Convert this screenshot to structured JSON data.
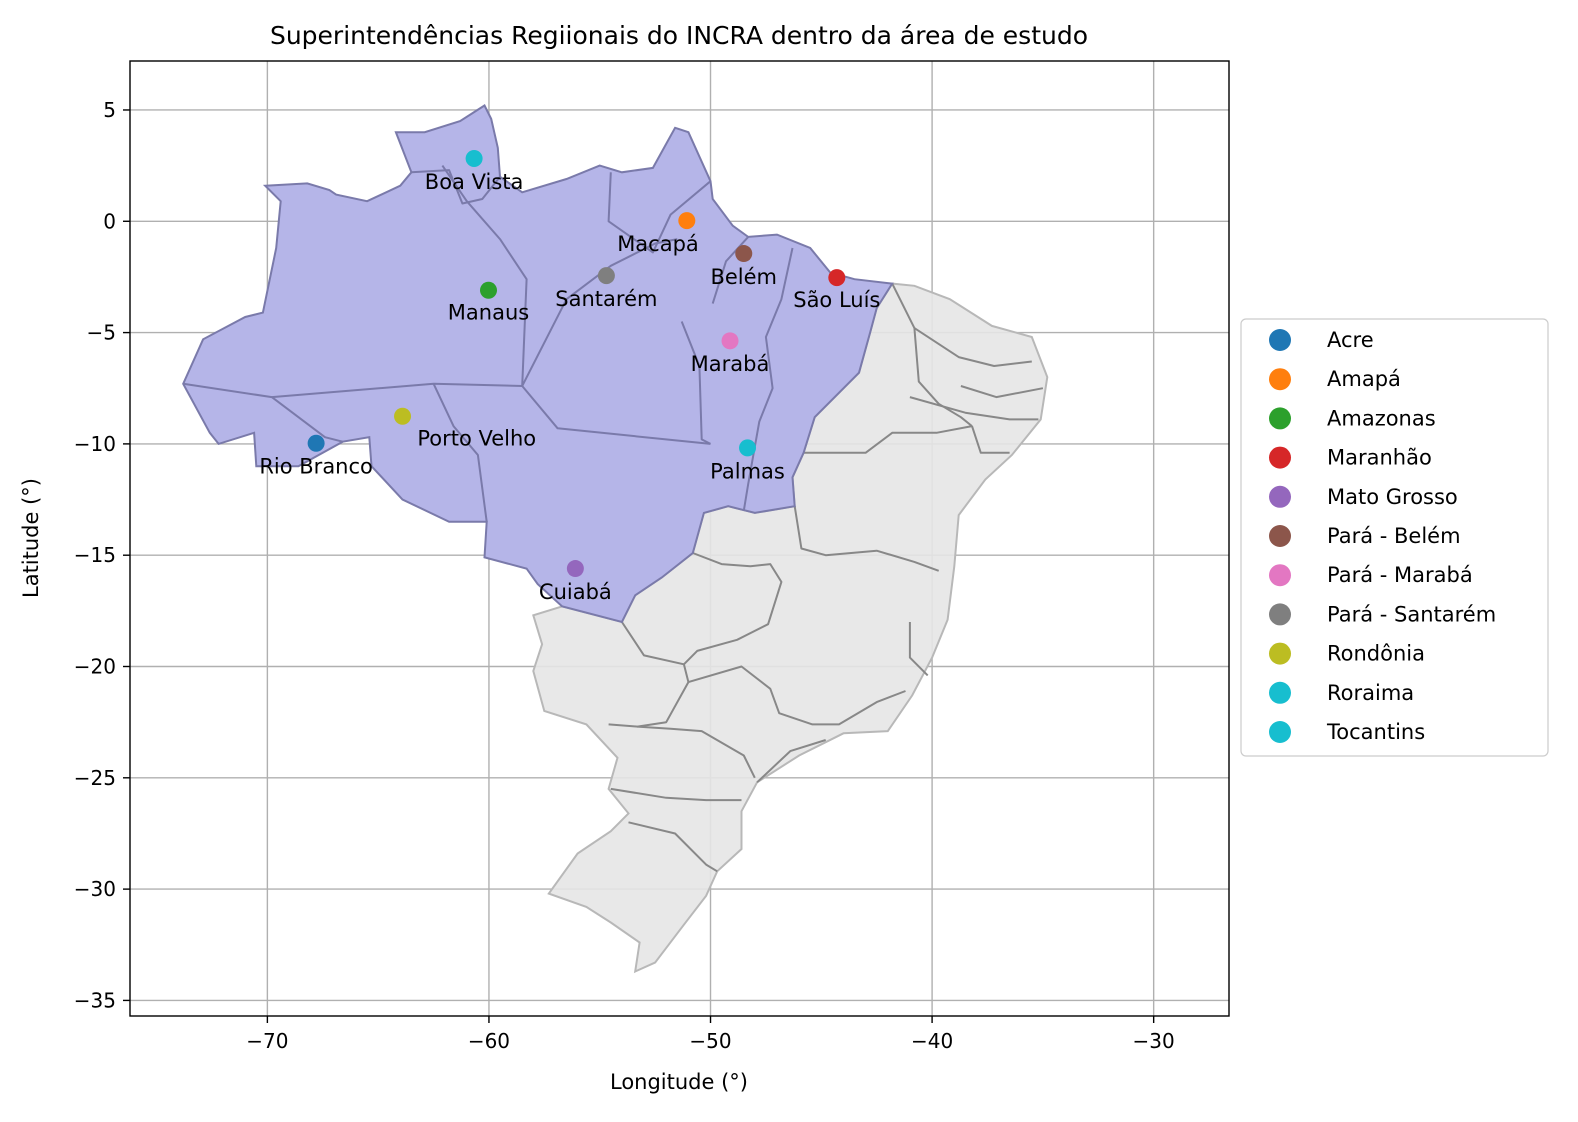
{
  "title": "Superintendências Regiionais do INCRA dentro da área de estudo",
  "xlabel": "Longitude (°)",
  "ylabel": "Latitude (°)",
  "xlim": [
    -76.2,
    -26.6
  ],
  "ylim": [
    -35.7,
    7.2
  ],
  "x_ticks": [
    {
      "value": -70,
      "label": "−70"
    },
    {
      "value": -60,
      "label": "−60"
    },
    {
      "value": -50,
      "label": "−50"
    },
    {
      "value": -40,
      "label": "−40"
    },
    {
      "value": -30,
      "label": "−30"
    }
  ],
  "y_ticks": [
    {
      "value": 5,
      "label": "5"
    },
    {
      "value": 0,
      "label": "0"
    },
    {
      "value": -5,
      "label": "−5"
    },
    {
      "value": -10,
      "label": "−10"
    },
    {
      "value": -15,
      "label": "−15"
    },
    {
      "value": -20,
      "label": "−20"
    },
    {
      "value": -25,
      "label": "−25"
    },
    {
      "value": -30,
      "label": "−30"
    },
    {
      "value": -35,
      "label": "−35"
    }
  ],
  "colors": {
    "study_area_fill": "#b5b5e8",
    "study_area_edge": "#7a7aaa",
    "rest_fill": "#e5e5e5",
    "rest_edge": "#b8b8b8",
    "grid": "#b0b0b0"
  },
  "cities": [
    {
      "name": "Acre",
      "label": "Rio Branco",
      "lon": -67.8,
      "lat": -9.97,
      "color": "#1f77b4",
      "label_dx": 0,
      "label_dy": 1.05
    },
    {
      "name": "Amapá",
      "label": "Macapá",
      "lon": -51.07,
      "lat": 0.03,
      "color": "#ff7f0e",
      "label_dx": -1.3,
      "label_dy": 1.05
    },
    {
      "name": "Amazonas",
      "label": "Manaus",
      "lon": -60.02,
      "lat": -3.1,
      "color": "#2ca02c",
      "label_dx": 0,
      "label_dy": 1.0
    },
    {
      "name": "Maranhão",
      "label": "São Luís",
      "lon": -44.3,
      "lat": -2.53,
      "color": "#d62728",
      "label_dx": 0,
      "label_dy": 1.0
    },
    {
      "name": "Mato Grosso",
      "label": "Cuiabá",
      "lon": -56.1,
      "lat": -15.6,
      "color": "#9467bd",
      "label_dx": 0,
      "label_dy": 1.05
    },
    {
      "name": "Pará - Belém",
      "label": "Belém",
      "lon": -48.5,
      "lat": -1.45,
      "color": "#8c564b",
      "label_dx": 0,
      "label_dy": 1.05
    },
    {
      "name": "Pará - Marabá",
      "label": "Marabá",
      "lon": -49.12,
      "lat": -5.37,
      "color": "#e377c2",
      "label_dx": 0,
      "label_dy": 1.05
    },
    {
      "name": "Pará - Santarém",
      "label": "Santarém",
      "lon": -54.7,
      "lat": -2.44,
      "color": "#7f7f7f",
      "label_dx": 0,
      "label_dy": 1.05
    },
    {
      "name": "Rondônia",
      "label": "Porto Velho",
      "lon": -63.9,
      "lat": -8.76,
      "color": "#bcbd22",
      "label_dx": 3.35,
      "label_dy": 1.0
    },
    {
      "name": "Roraima",
      "label": "Boa Vista",
      "lon": -60.67,
      "lat": 2.82,
      "color": "#17becf",
      "label_dx": 0,
      "label_dy": 1.05
    },
    {
      "name": "Tocantins",
      "label": "Palmas",
      "lon": -48.33,
      "lat": -10.18,
      "color": "#17becf",
      "label_dx": 0,
      "label_dy": 1.05
    }
  ],
  "legend": {
    "position": "right-center",
    "entries": [
      {
        "label": "Acre",
        "color": "#1f77b4"
      },
      {
        "label": "Amapá",
        "color": "#ff7f0e"
      },
      {
        "label": "Amazonas",
        "color": "#2ca02c"
      },
      {
        "label": "Maranhão",
        "color": "#d62728"
      },
      {
        "label": "Mato Grosso",
        "color": "#9467bd"
      },
      {
        "label": "Pará - Belém",
        "color": "#8c564b"
      },
      {
        "label": "Pará - Marabá",
        "color": "#e377c2"
      },
      {
        "label": "Pará - Santarém",
        "color": "#7f7f7f"
      },
      {
        "label": "Rondônia",
        "color": "#bcbd22"
      },
      {
        "label": "Roraima",
        "color": "#17becf"
      },
      {
        "label": "Tocantins",
        "color": "#17becf"
      }
    ]
  },
  "regions": {
    "study_area": [
      [
        -73.8,
        -7.3
      ],
      [
        -72.9,
        -5.3
      ],
      [
        -71.0,
        -4.3
      ],
      [
        -70.2,
        -4.1
      ],
      [
        -69.6,
        -1.2
      ],
      [
        -69.4,
        0.9
      ],
      [
        -70.1,
        1.6
      ],
      [
        -68.2,
        1.7
      ],
      [
        -67.2,
        1.4
      ],
      [
        -66.9,
        1.2
      ],
      [
        -65.5,
        0.9
      ],
      [
        -64.0,
        1.6
      ],
      [
        -63.5,
        2.2
      ],
      [
        -64.2,
        4.0
      ],
      [
        -62.9,
        4.0
      ],
      [
        -61.3,
        4.5
      ],
      [
        -60.2,
        5.2
      ],
      [
        -59.9,
        4.6
      ],
      [
        -59.6,
        3.3
      ],
      [
        -59.5,
        2.0
      ],
      [
        -58.5,
        1.3
      ],
      [
        -56.5,
        1.9
      ],
      [
        -55.0,
        2.5
      ],
      [
        -54.0,
        2.2
      ],
      [
        -52.6,
        2.4
      ],
      [
        -51.6,
        4.2
      ],
      [
        -51.0,
        4.0
      ],
      [
        -50.0,
        1.8
      ],
      [
        -49.9,
        1.0
      ],
      [
        -49.0,
        -0.2
      ],
      [
        -48.3,
        -0.7
      ],
      [
        -47.0,
        -0.6
      ],
      [
        -45.5,
        -1.2
      ],
      [
        -44.6,
        -2.3
      ],
      [
        -43.5,
        -2.6
      ],
      [
        -41.8,
        -2.8
      ],
      [
        -42.5,
        -3.9
      ],
      [
        -42.8,
        -5.0
      ],
      [
        -43.3,
        -6.8
      ],
      [
        -45.3,
        -8.8
      ],
      [
        -45.8,
        -10.4
      ],
      [
        -46.3,
        -11.5
      ],
      [
        -46.2,
        -12.8
      ],
      [
        -48.0,
        -13.1
      ],
      [
        -49.2,
        -12.8
      ],
      [
        -50.3,
        -13.1
      ],
      [
        -50.8,
        -14.9
      ],
      [
        -52.2,
        -16.0
      ],
      [
        -53.4,
        -16.8
      ],
      [
        -54.0,
        -18.0
      ],
      [
        -56.7,
        -17.3
      ],
      [
        -57.8,
        -16.3
      ],
      [
        -58.3,
        -15.6
      ],
      [
        -60.2,
        -15.1
      ],
      [
        -60.1,
        -13.5
      ],
      [
        -61.8,
        -13.5
      ],
      [
        -63.9,
        -12.5
      ],
      [
        -65.3,
        -11.0
      ],
      [
        -65.4,
        -9.7
      ],
      [
        -66.6,
        -9.9
      ],
      [
        -68.6,
        -11.0
      ],
      [
        -70.5,
        -11.0
      ],
      [
        -70.6,
        -9.5
      ],
      [
        -72.2,
        -10.0
      ],
      [
        -72.6,
        -9.5
      ],
      [
        -73.8,
        -7.3
      ]
    ],
    "rest_area": [
      [
        -48.0,
        -13.1
      ],
      [
        -46.2,
        -12.8
      ],
      [
        -46.3,
        -11.5
      ],
      [
        -45.8,
        -10.4
      ],
      [
        -45.3,
        -8.8
      ],
      [
        -43.3,
        -6.8
      ],
      [
        -42.8,
        -5.0
      ],
      [
        -42.5,
        -3.9
      ],
      [
        -41.8,
        -2.8
      ],
      [
        -40.8,
        -2.9
      ],
      [
        -39.2,
        -3.5
      ],
      [
        -37.3,
        -4.7
      ],
      [
        -35.5,
        -5.2
      ],
      [
        -34.8,
        -7.0
      ],
      [
        -35.1,
        -8.9
      ],
      [
        -36.4,
        -10.5
      ],
      [
        -37.6,
        -11.6
      ],
      [
        -38.8,
        -13.2
      ],
      [
        -39.0,
        -15.5
      ],
      [
        -39.3,
        -17.9
      ],
      [
        -40.0,
        -19.6
      ],
      [
        -40.9,
        -21.3
      ],
      [
        -42.0,
        -22.9
      ],
      [
        -44.0,
        -23.0
      ],
      [
        -46.0,
        -24.0
      ],
      [
        -47.9,
        -25.2
      ],
      [
        -48.6,
        -26.5
      ],
      [
        -48.6,
        -28.2
      ],
      [
        -49.7,
        -29.2
      ],
      [
        -50.2,
        -30.3
      ],
      [
        -51.2,
        -31.6
      ],
      [
        -52.5,
        -33.3
      ],
      [
        -53.4,
        -33.7
      ],
      [
        -53.2,
        -32.4
      ],
      [
        -54.5,
        -31.5
      ],
      [
        -55.6,
        -30.8
      ],
      [
        -57.3,
        -30.2
      ],
      [
        -56.0,
        -28.4
      ],
      [
        -54.5,
        -27.4
      ],
      [
        -53.7,
        -26.6
      ],
      [
        -54.6,
        -25.5
      ],
      [
        -54.2,
        -24.1
      ],
      [
        -55.6,
        -22.6
      ],
      [
        -57.5,
        -22.0
      ],
      [
        -58.0,
        -20.2
      ],
      [
        -57.6,
        -19.0
      ],
      [
        -58.0,
        -17.7
      ],
      [
        -56.7,
        -17.3
      ],
      [
        -54.0,
        -18.0
      ],
      [
        -53.4,
        -16.8
      ],
      [
        -52.2,
        -16.0
      ],
      [
        -50.8,
        -14.9
      ],
      [
        -50.3,
        -13.1
      ],
      [
        -49.2,
        -12.8
      ],
      [
        -48.0,
        -13.1
      ]
    ],
    "study_borders": [
      [
        [
          -73.8,
          -7.3
        ],
        [
          -69.8,
          -7.9
        ],
        [
          -67.4,
          -9.7
        ],
        [
          -66.6,
          -9.9
        ]
      ],
      [
        [
          -69.8,
          -7.9
        ],
        [
          -62.5,
          -7.3
        ],
        [
          -58.5,
          -7.4
        ],
        [
          -56.9,
          -9.3
        ],
        [
          -50.0,
          -10.0
        ]
      ],
      [
        [
          -62.5,
          -7.3
        ],
        [
          -61.6,
          -9.2
        ],
        [
          -60.5,
          -10.5
        ],
        [
          -60.1,
          -13.5
        ]
      ],
      [
        [
          -58.5,
          -7.4
        ],
        [
          -58.3,
          -2.6
        ],
        [
          -59.5,
          -0.8
        ],
        [
          -61.0,
          0.9
        ],
        [
          -62.1,
          2.5
        ]
      ],
      [
        [
          -63.5,
          2.2
        ],
        [
          -61.8,
          2.3
        ],
        [
          -61.2,
          0.8
        ],
        [
          -60.3,
          1.0
        ],
        [
          -59.5,
          2.0
        ]
      ],
      [
        [
          -58.5,
          -7.4
        ],
        [
          -56.5,
          -3.5
        ],
        [
          -54.5,
          -2.0
        ],
        [
          -52.5,
          -1.0
        ],
        [
          -51.5,
          -0.8
        ]
      ],
      [
        [
          -51.3,
          -4.5
        ],
        [
          -50.5,
          -6.5
        ],
        [
          -50.4,
          -9.8
        ],
        [
          -50.0,
          -10.0
        ]
      ],
      [
        [
          -48.5,
          -13.0
        ],
        [
          -48.3,
          -11.8
        ],
        [
          -47.8,
          -9.0
        ],
        [
          -47.2,
          -7.5
        ],
        [
          -47.5,
          -5.2
        ],
        [
          -46.8,
          -3.5
        ],
        [
          -46.3,
          -1.2
        ]
      ],
      [
        [
          -54.5,
          2.2
        ],
        [
          -54.6,
          0.0
        ],
        [
          -52.6,
          -1.4
        ],
        [
          -51.8,
          0.3
        ],
        [
          -50.0,
          1.8
        ]
      ],
      [
        [
          -48.3,
          -0.7
        ],
        [
          -49.3,
          -1.8
        ],
        [
          -49.9,
          -3.7
        ]
      ]
    ],
    "rest_borders": [
      [
        [
          -41.8,
          -2.8
        ],
        [
          -40.8,
          -4.8
        ],
        [
          -40.6,
          -7.2
        ],
        [
          -39.7,
          -8.2
        ],
        [
          -38.7,
          -8.8
        ],
        [
          -38.2,
          -9.2
        ]
      ],
      [
        [
          -40.8,
          -4.8
        ],
        [
          -38.8,
          -6.1
        ],
        [
          -37.2,
          -6.5
        ],
        [
          -35.5,
          -6.3
        ]
      ],
      [
        [
          -38.7,
          -7.4
        ],
        [
          -37.1,
          -7.9
        ],
        [
          -35.0,
          -7.5
        ]
      ],
      [
        [
          -41.0,
          -7.9
        ],
        [
          -38.5,
          -8.6
        ],
        [
          -36.5,
          -8.9
        ],
        [
          -35.2,
          -8.9
        ]
      ],
      [
        [
          -38.2,
          -9.2
        ],
        [
          -37.8,
          -10.4
        ],
        [
          -36.5,
          -10.4
        ]
      ],
      [
        [
          -38.2,
          -9.2
        ],
        [
          -39.8,
          -9.5
        ],
        [
          -41.8,
          -9.5
        ],
        [
          -43.0,
          -10.4
        ],
        [
          -45.8,
          -10.4
        ]
      ],
      [
        [
          -46.2,
          -12.8
        ],
        [
          -45.9,
          -14.7
        ],
        [
          -44.8,
          -15.0
        ],
        [
          -42.5,
          -14.8
        ],
        [
          -40.8,
          -15.3
        ],
        [
          -39.7,
          -15.7
        ]
      ],
      [
        [
          -50.8,
          -14.9
        ],
        [
          -49.5,
          -15.4
        ],
        [
          -48.2,
          -15.5
        ],
        [
          -47.3,
          -15.4
        ],
        [
          -46.8,
          -16.2
        ],
        [
          -47.4,
          -18.1
        ],
        [
          -48.8,
          -18.8
        ],
        [
          -50.6,
          -19.3
        ],
        [
          -51.2,
          -19.9
        ]
      ],
      [
        [
          -54.0,
          -18.0
        ],
        [
          -53.0,
          -19.5
        ],
        [
          -51.2,
          -19.9
        ],
        [
          -51.0,
          -20.7
        ],
        [
          -52.0,
          -22.5
        ],
        [
          -53.3,
          -22.7
        ],
        [
          -54.6,
          -22.6
        ]
      ],
      [
        [
          -51.0,
          -20.7
        ],
        [
          -48.6,
          -20.0
        ],
        [
          -47.3,
          -21.0
        ],
        [
          -46.9,
          -22.1
        ],
        [
          -45.4,
          -22.6
        ],
        [
          -44.2,
          -22.6
        ],
        [
          -42.5,
          -21.6
        ],
        [
          -41.2,
          -21.1
        ]
      ],
      [
        [
          -41.0,
          -18.0
        ],
        [
          -41.0,
          -19.6
        ],
        [
          -40.2,
          -20.4
        ]
      ],
      [
        [
          -44.8,
          -23.3
        ],
        [
          -46.4,
          -23.8
        ],
        [
          -47.9,
          -25.2
        ]
      ],
      [
        [
          -53.3,
          -22.7
        ],
        [
          -51.8,
          -22.8
        ],
        [
          -50.4,
          -22.9
        ],
        [
          -48.5,
          -24.0
        ],
        [
          -48.0,
          -25.0
        ]
      ],
      [
        [
          -54.5,
          -25.5
        ],
        [
          -52.0,
          -25.9
        ],
        [
          -50.2,
          -26.0
        ],
        [
          -48.6,
          -26.0
        ]
      ],
      [
        [
          -53.7,
          -27.0
        ],
        [
          -51.6,
          -27.5
        ],
        [
          -50.2,
          -28.9
        ],
        [
          -49.7,
          -29.2
        ]
      ]
    ]
  }
}
